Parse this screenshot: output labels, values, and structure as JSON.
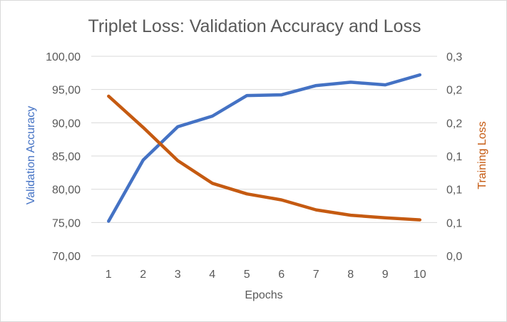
{
  "chart_data": {
    "type": "line",
    "title": "Triplet Loss: Validation Accuracy and Loss",
    "xlabel": "Epochs",
    "ylabel": "Validation Accuracy",
    "y2label": "Training Loss",
    "categories": [
      "1",
      "2",
      "3",
      "4",
      "5",
      "6",
      "7",
      "8",
      "9",
      "10"
    ],
    "y_ticks": [
      "70,00",
      "75,00",
      "80,00",
      "85,00",
      "90,00",
      "95,00",
      "100,00"
    ],
    "y2_ticks": [
      "0,0",
      "0,1",
      "0,1",
      "0,1",
      "0,2",
      "0,2",
      "0,3"
    ],
    "ylim": [
      70,
      100
    ],
    "y2lim": [
      0,
      0.3
    ],
    "grid": true,
    "series": [
      {
        "name": "Validation Accuracy",
        "axis": "left",
        "color": "#4472C4",
        "values": [
          75.2,
          84.4,
          89.4,
          91.0,
          94.1,
          94.2,
          95.6,
          96.1,
          95.7,
          97.2
        ]
      },
      {
        "name": "Training Loss",
        "axis": "right",
        "color": "#C55A11",
        "values": [
          0.24,
          0.193,
          0.143,
          0.109,
          0.093,
          0.084,
          0.069,
          0.061,
          0.057,
          0.054
        ]
      }
    ]
  }
}
